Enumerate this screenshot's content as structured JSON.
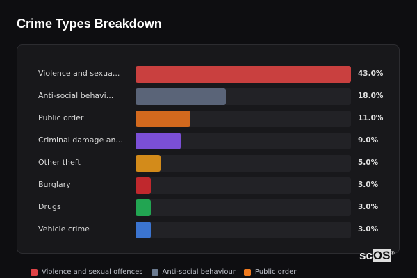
{
  "header": {
    "title": "Crime Types Breakdown"
  },
  "chart_data": {
    "type": "bar",
    "orientation": "horizontal",
    "title": "Crime Types Breakdown",
    "categories": [
      "Violence and sexua...",
      "Anti-social behavi...",
      "Public order",
      "Criminal damage an...",
      "Other theft",
      "Burglary",
      "Drugs",
      "Vehicle crime"
    ],
    "values": [
      43.0,
      18.0,
      11.0,
      9.0,
      5.0,
      3.0,
      3.0,
      3.0
    ],
    "value_labels": [
      "43.0%",
      "18.0%",
      "11.0%",
      "9.0%",
      "5.0%",
      "3.0%",
      "3.0%",
      "3.0%"
    ],
    "colors": [
      "#c9403f",
      "#5a6478",
      "#d2691e",
      "#7b4fd6",
      "#d38b1a",
      "#c0282d",
      "#22a552",
      "#3b74d0"
    ],
    "legend": {
      "placement": "bottom",
      "items": [
        {
          "label": "Violence and sexual offences",
          "color": "#e04448"
        },
        {
          "label": "Anti-social behaviour",
          "color": "#6b7a90"
        },
        {
          "label": "Public order",
          "color": "#f07a1e"
        }
      ]
    }
  },
  "logo": {
    "text_a": "sc",
    "text_b": "OS",
    "mark": "®"
  }
}
